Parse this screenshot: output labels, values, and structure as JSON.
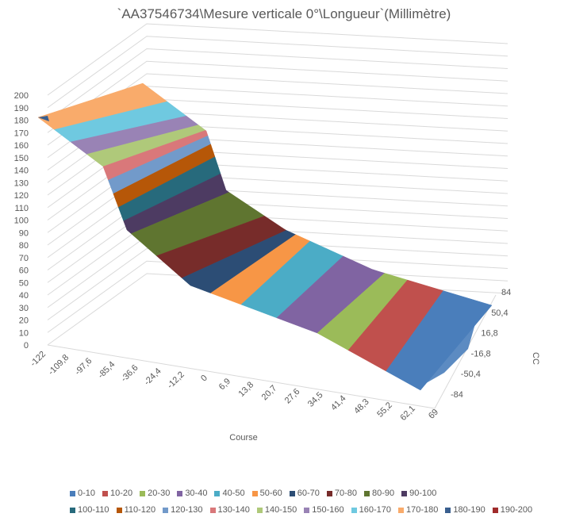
{
  "chart_data": {
    "type": "surface",
    "title": "`AA37546734\\Mesure verticale 0°\\Longueur`(Millimètre)",
    "xlabel": "Course",
    "ylabel": "CC",
    "x_ticks": [
      "-122",
      "-109,8",
      "-97,6",
      "-85,4",
      "-36,6",
      "-24,4",
      "-12,2",
      "0",
      "6,9",
      "13,8",
      "20,7",
      "27,6",
      "34,5",
      "41,4",
      "48,3",
      "55,2",
      "62,1",
      "69"
    ],
    "y_ticks": [
      "84",
      "50,4",
      "16,8",
      "-16,8",
      "-50,4",
      "-84"
    ],
    "z_ticks": [
      "0",
      "10",
      "20",
      "30",
      "40",
      "50",
      "60",
      "70",
      "80",
      "90",
      "100",
      "110",
      "120",
      "130",
      "140",
      "150",
      "160",
      "170",
      "180",
      "190",
      "200"
    ],
    "zlim": [
      0,
      200
    ],
    "legend": [
      {
        "label": "0-10",
        "color": "#4a7ebb"
      },
      {
        "label": "10-20",
        "color": "#c0504d"
      },
      {
        "label": "20-30",
        "color": "#9bbb59"
      },
      {
        "label": "30-40",
        "color": "#8064a2"
      },
      {
        "label": "40-50",
        "color": "#4bacc6"
      },
      {
        "label": "50-60",
        "color": "#f79646"
      },
      {
        "label": "60-70",
        "color": "#2c4d75"
      },
      {
        "label": "70-80",
        "color": "#772c2a"
      },
      {
        "label": "80-90",
        "color": "#5f7530"
      },
      {
        "label": "90-100",
        "color": "#4d3b62"
      },
      {
        "label": "100-110",
        "color": "#276a7c"
      },
      {
        "label": "110-120",
        "color": "#b65708"
      },
      {
        "label": "120-130",
        "color": "#729aca"
      },
      {
        "label": "130-140",
        "color": "#d9787a"
      },
      {
        "label": "140-150",
        "color": "#afc97a"
      },
      {
        "label": "150-160",
        "color": "#9983b5"
      },
      {
        "label": "160-170",
        "color": "#6fc9e0"
      },
      {
        "label": "170-180",
        "color": "#f9ab6b"
      },
      {
        "label": "180-190",
        "color": "#3a5f8f"
      },
      {
        "label": "190-200",
        "color": "#a02b2b"
      }
    ],
    "surface_profile_by_course": [
      {
        "course_range": "-122 to -109,8",
        "z_band": "170-180"
      },
      {
        "course_range": "-109,8 to -85,4",
        "z_band": "140-170"
      },
      {
        "course_range": "-85,4 to -36,6",
        "z_band": "90-140"
      },
      {
        "course_range": "-36,6 to 6,9",
        "z_band": "60-90"
      },
      {
        "course_range": "6,9 to 34,5",
        "z_band": "30-60"
      },
      {
        "course_range": "34,5 to 55,2",
        "z_band": "10-30"
      },
      {
        "course_range": "55,2 to 69",
        "z_band": "0-20"
      }
    ]
  }
}
